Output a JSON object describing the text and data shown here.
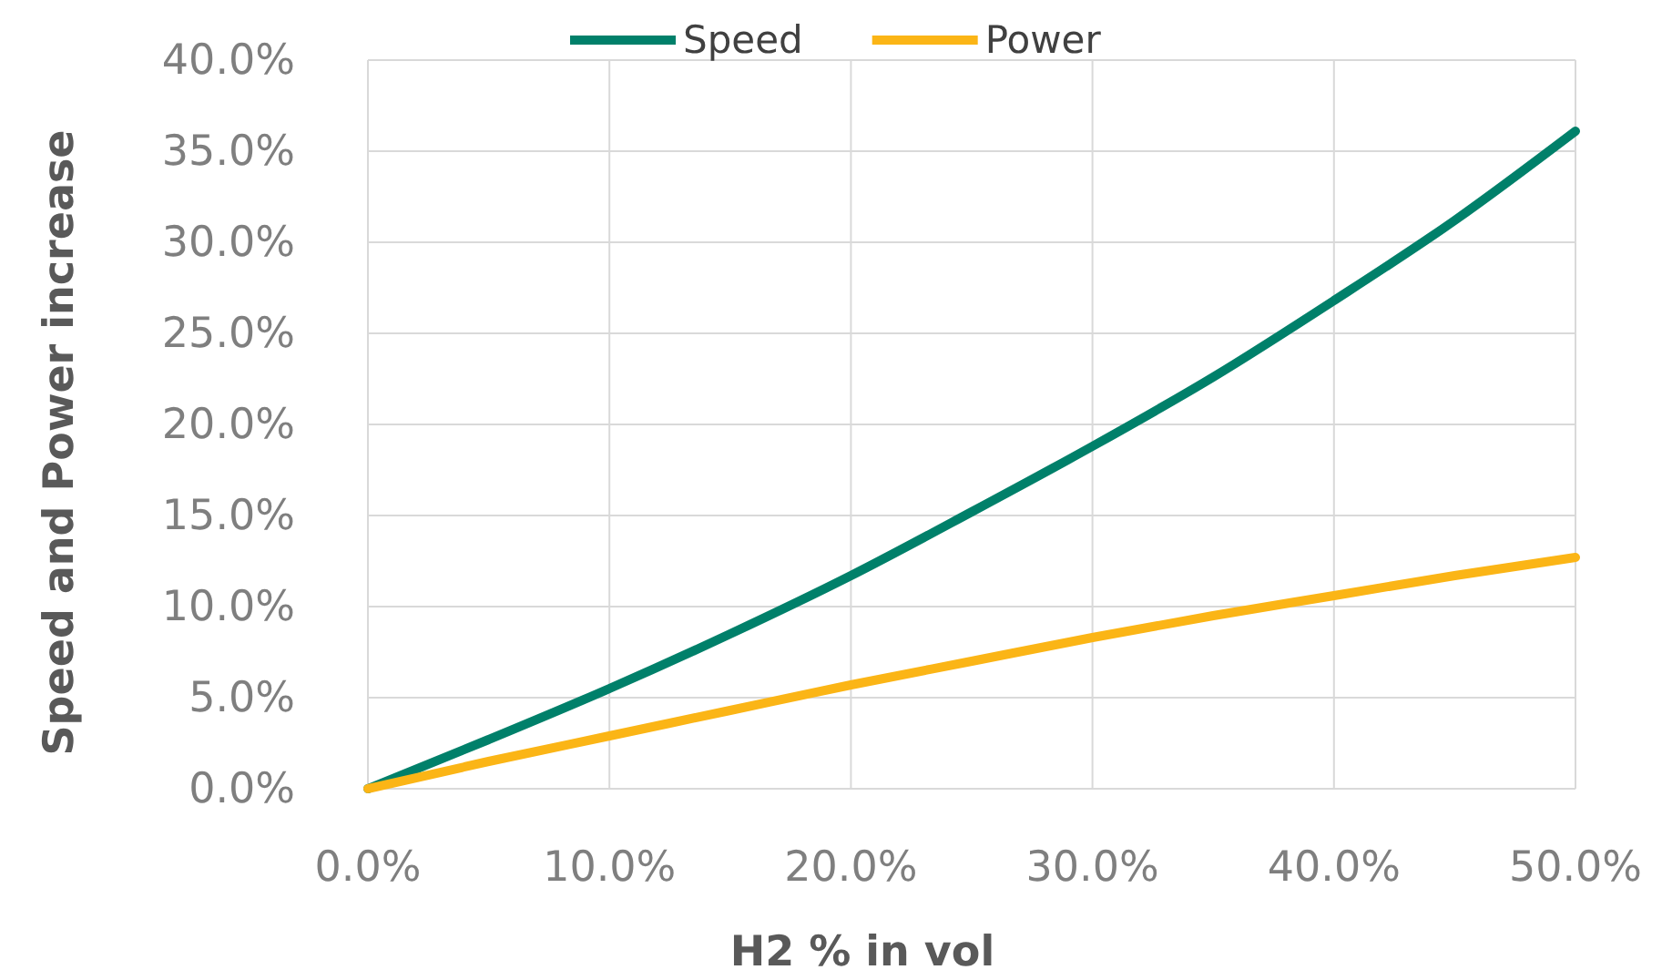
{
  "chart_data": {
    "type": "line",
    "xlabel": "H2 % in vol",
    "ylabel": "Speed and Power  increase",
    "x": [
      0,
      5,
      10,
      15,
      20,
      25,
      30,
      35,
      40,
      45,
      50
    ],
    "series": [
      {
        "name": "Speed",
        "color": "#00806a",
        "values": [
          0,
          2.7,
          5.5,
          8.5,
          11.7,
          15.2,
          18.8,
          22.6,
          26.8,
          31.2,
          36.1
        ]
      },
      {
        "name": "Power",
        "color": "#fbb516",
        "values": [
          0,
          1.5,
          2.9,
          4.3,
          5.7,
          7.0,
          8.3,
          9.5,
          10.6,
          11.7,
          12.7
        ]
      }
    ],
    "xlim": [
      0,
      50
    ],
    "xticks": [
      {
        "value": 0,
        "label": "0.0%"
      },
      {
        "value": 10,
        "label": "10.0%"
      },
      {
        "value": 20,
        "label": "20.0%"
      },
      {
        "value": 30,
        "label": "30.0%"
      },
      {
        "value": 40,
        "label": "40.0%"
      },
      {
        "value": 50,
        "label": "50.0%"
      }
    ],
    "ylim": [
      0,
      40
    ],
    "yticks": [
      {
        "value": 0,
        "label": "0.0%"
      },
      {
        "value": 5,
        "label": "5.0%"
      },
      {
        "value": 10,
        "label": "10.0%"
      },
      {
        "value": 15,
        "label": "15.0%"
      },
      {
        "value": 20,
        "label": "20.0%"
      },
      {
        "value": 25,
        "label": "25.0%"
      },
      {
        "value": 30,
        "label": "30.0%"
      },
      {
        "value": 35,
        "label": "35.0%"
      },
      {
        "value": 40,
        "label": "40.0%"
      }
    ],
    "grid": true,
    "legend": "top",
    "marker": "none",
    "line_style": "solid"
  }
}
